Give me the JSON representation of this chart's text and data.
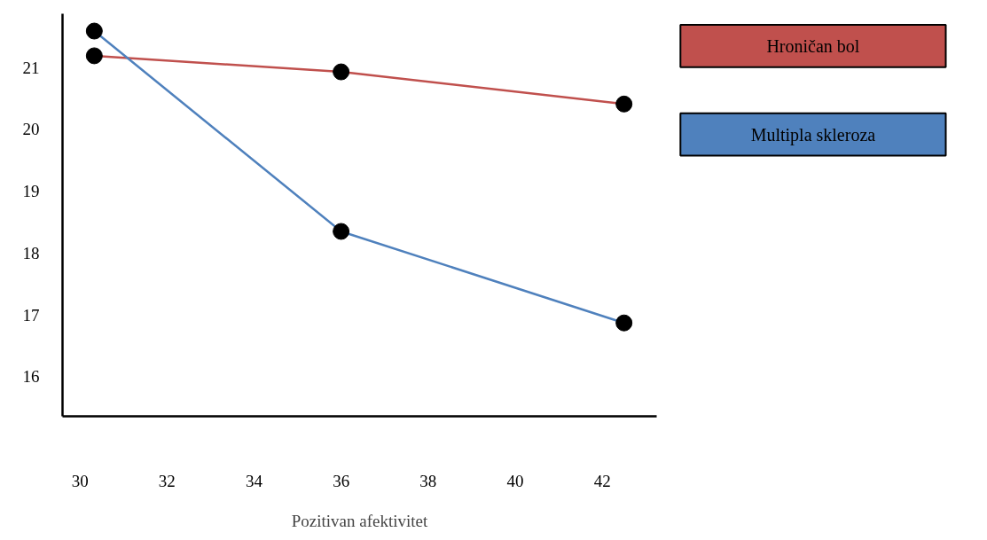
{
  "chart_data": {
    "type": "line",
    "xlabel": "Pozitivan afektivitet",
    "x": [
      30.33,
      36,
      42.5
    ],
    "series": [
      {
        "name": "Hroničan bol",
        "color": "#c0504d",
        "values": [
          21.19,
          20.93,
          20.41
        ]
      },
      {
        "name": "Multipla skleroza",
        "color": "#4f81bd",
        "values": [
          21.59,
          18.35,
          16.87
        ]
      }
    ],
    "xlim": [
      29.6,
      43.25
    ],
    "ylim": [
      15.36,
      21.87
    ],
    "xticks": [
      30,
      32,
      34,
      36,
      38,
      40,
      42
    ],
    "yticks": [
      16,
      17,
      18,
      19,
      20,
      21
    ],
    "marker": "circle",
    "line_style": "solid",
    "grid": false,
    "legend": "top right"
  }
}
